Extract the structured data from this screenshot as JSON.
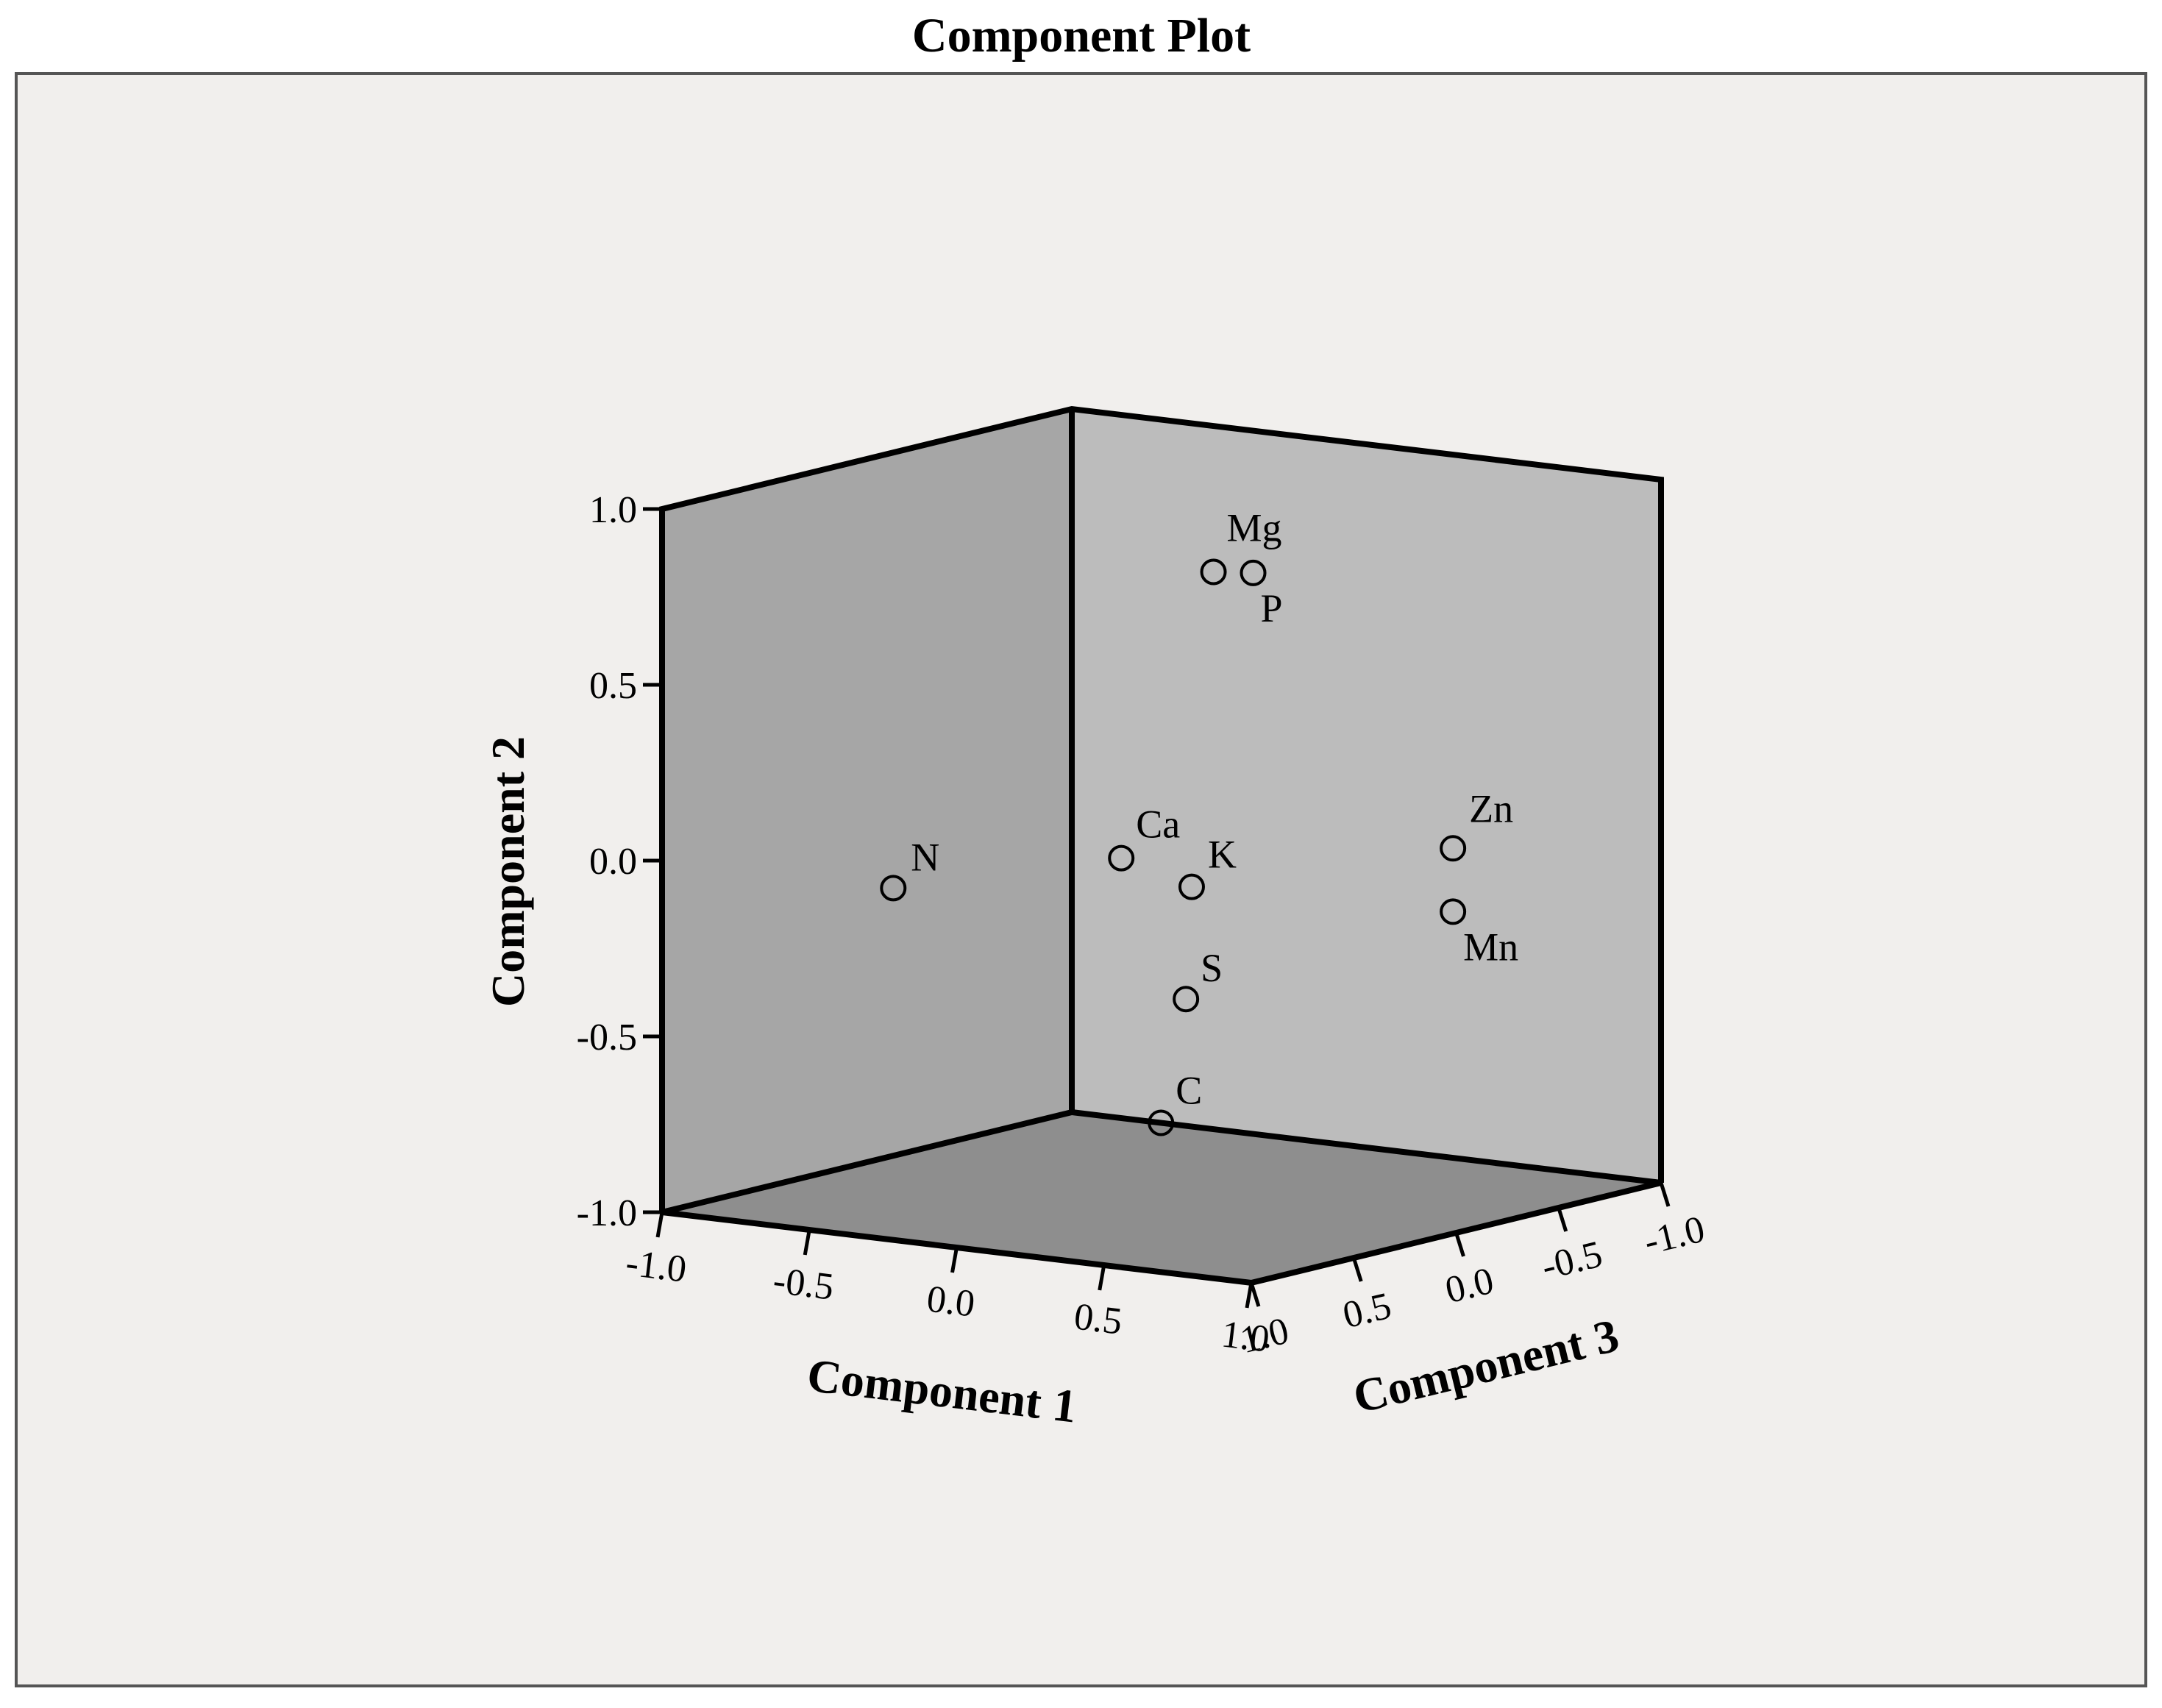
{
  "chart_data": {
    "type": "scatter",
    "projection": "3d",
    "title": "Component Plot",
    "axes": {
      "x": {
        "label": "Component 1",
        "range": [
          -1.0,
          1.0
        ],
        "ticks": [
          "-1.0",
          "-0.5",
          "0.0",
          "0.5",
          "1.0"
        ]
      },
      "y": {
        "label": "Component 2",
        "range": [
          -1.0,
          1.0
        ],
        "ticks": [
          "-1.0",
          "-0.5",
          "0.0",
          "0.5",
          "1.0"
        ]
      },
      "z": {
        "label": "Component 3",
        "range": [
          -1.0,
          1.0
        ],
        "ticks": [
          "1.0",
          "0.5",
          "0.0",
          "-0.5",
          "-1.0"
        ]
      }
    },
    "points": [
      {
        "label": "Mg",
        "x": 0.35,
        "y": 0.85,
        "z": 0.25
      },
      {
        "label": "P",
        "x": 0.45,
        "y": 0.85,
        "z": 0.2
      },
      {
        "label": "Ca",
        "x": 0.35,
        "y": 0.1,
        "z": 0.7
      },
      {
        "label": "N",
        "x": -0.25,
        "y": -0.01,
        "z": 0.95
      },
      {
        "label": "K",
        "x": 0.45,
        "y": 0.0,
        "z": 0.5
      },
      {
        "label": "S",
        "x": 0.5,
        "y": -0.3,
        "z": 0.6
      },
      {
        "label": "C",
        "x": 0.45,
        "y": -0.65,
        "z": 0.65
      },
      {
        "label": "Zn",
        "x": 0.85,
        "y": 0.05,
        "z": -0.2
      },
      {
        "label": "Mn",
        "x": 0.85,
        "y": -0.13,
        "z": -0.2
      }
    ],
    "colors": {
      "background": "#f1efed",
      "left_wall": "#a6a6a6",
      "back_wall": "#bcbcbc",
      "floor": "#8e8e8e",
      "frame": "#000000"
    }
  }
}
